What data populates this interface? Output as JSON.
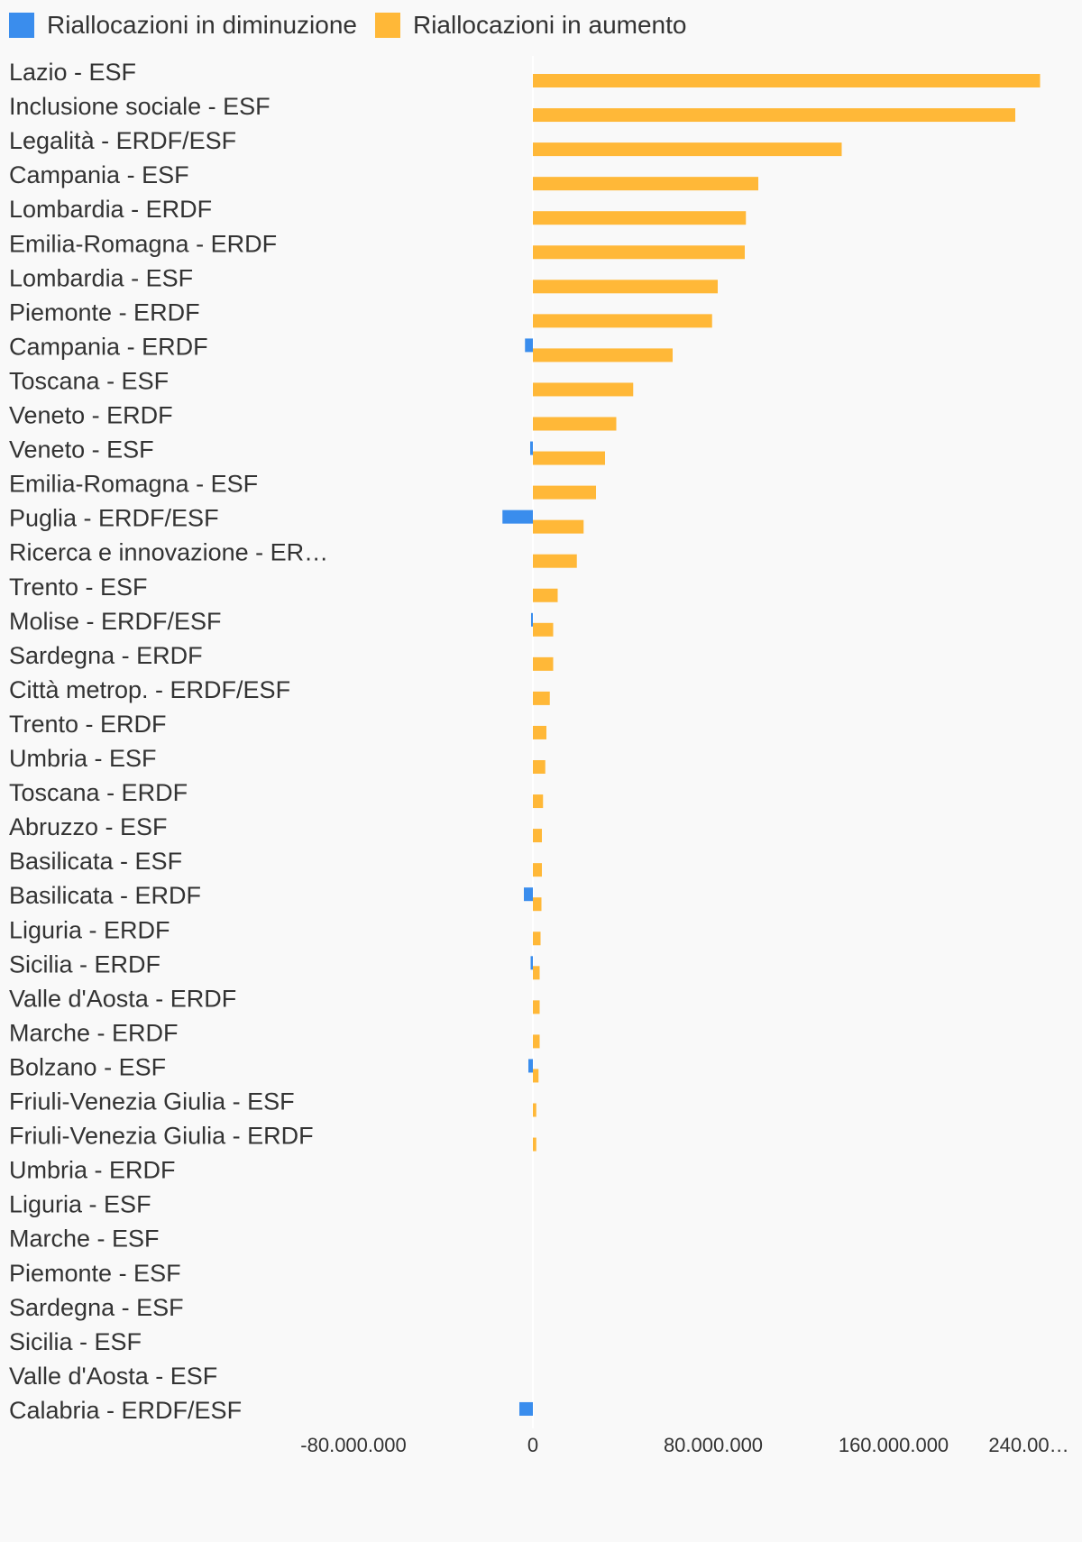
{
  "colors": {
    "decrease": "#3a8ded",
    "increase": "#ffb838",
    "text": "#333333",
    "background": "#f9f9f9"
  },
  "legend": [
    {
      "label": "Riallocazioni in diminuzione",
      "color": "#3a8ded"
    },
    {
      "label": "Riallocazioni in aumento",
      "color": "#ffb838"
    }
  ],
  "chart_data": {
    "type": "bar",
    "orientation": "horizontal",
    "categories": [
      "Lazio - ESF",
      "Inclusione sociale - ESF",
      "Legalità - ERDF/ESF",
      "Campania - ESF",
      "Lombardia - ERDF",
      "Emilia-Romagna - ERDF",
      "Lombardia - ESF",
      "Piemonte - ERDF",
      "Campania - ERDF",
      "Toscana - ESF",
      "Veneto - ERDF",
      "Veneto - ESF",
      "Emilia-Romagna - ESF",
      "Puglia - ERDF/ESF",
      "Ricerca e innovazione - ER…",
      "Trento - ESF",
      "Molise - ERDF/ESF",
      "Sardegna - ERDF",
      "Città metrop. - ERDF/ESF",
      "Trento - ERDF",
      "Umbria - ESF",
      "Toscana - ERDF",
      "Abruzzo - ESF",
      "Basilicata - ESF",
      "Basilicata - ERDF",
      "Liguria - ERDF",
      "Sicilia - ERDF",
      "Valle d'Aosta - ERDF",
      "Marche - ERDF",
      "Bolzano - ESF",
      "Friuli-Venezia Giulia - ESF",
      "Friuli-Venezia Giulia - ERDF",
      "Umbria - ERDF",
      "Liguria - ESF",
      "Marche - ESF",
      "Piemonte - ESF",
      "Sardegna - ESF",
      "Sicilia - ESF",
      "Valle d'Aosta - ESF",
      "Calabria - ERDF/ESF"
    ],
    "series": [
      {
        "name": "Riallocazioni in diminuzione",
        "color": "#3a8ded",
        "values": [
          0,
          0,
          0,
          0,
          0,
          0,
          0,
          0,
          -3500000,
          0,
          0,
          -1200000,
          0,
          -13500000,
          0,
          0,
          -800000,
          0,
          0,
          0,
          0,
          0,
          0,
          0,
          -4000000,
          0,
          -1000000,
          0,
          0,
          -2000000,
          0,
          0,
          0,
          0,
          0,
          0,
          0,
          0,
          0,
          -6000000
        ]
      },
      {
        "name": "Riallocazioni in aumento",
        "color": "#ffb838",
        "values": [
          225000000,
          214000000,
          137000000,
          100000000,
          94500000,
          94000000,
          82000000,
          79500000,
          62000000,
          44500000,
          37000000,
          32000000,
          28000000,
          22500000,
          19500000,
          11000000,
          9000000,
          9000000,
          7500000,
          6000000,
          5500000,
          4500000,
          4000000,
          4000000,
          3800000,
          3400000,
          3000000,
          3000000,
          3000000,
          2500000,
          1500000,
          1500000,
          0,
          0,
          0,
          0,
          0,
          0,
          0,
          0
        ]
      }
    ],
    "x_ticks": [
      "-80.000.000",
      "0",
      "80.000.000",
      "160.000.000",
      "240.00…"
    ],
    "xlim": [
      -80000000,
      240000000
    ],
    "legend_position": "top-left",
    "grid": false
  }
}
